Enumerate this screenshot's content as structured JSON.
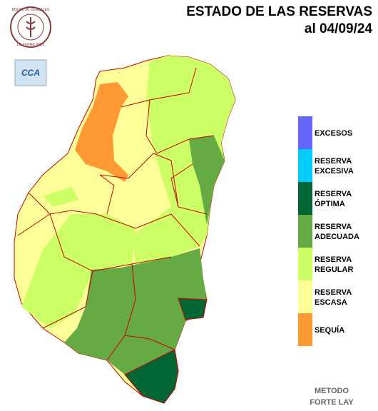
{
  "header": {
    "title": "ESTADO DE LAS RESERVAS",
    "date": "al 04/09/24"
  },
  "logos": {
    "bolsa_top": "BOLSA DE CEREALES",
    "bolsa_bottom": "DE ENTRE RIOS",
    "cca": "CCA"
  },
  "legend": [
    {
      "lines": [
        "EXCESOS"
      ],
      "color": "#6666ff"
    },
    {
      "lines": [
        "RESERVA",
        "EXCESIVA"
      ],
      "color": "#00ccff"
    },
    {
      "lines": [
        "RESERVA",
        "ÓPTIMA"
      ],
      "color": "#006633"
    },
    {
      "lines": [
        "RESERVA",
        "ADECUADA"
      ],
      "color": "#66aa44"
    },
    {
      "lines": [
        "RESERVA",
        "REGULAR"
      ],
      "color": "#ccff66"
    },
    {
      "lines": [
        "RESERVA",
        "ESCASA"
      ],
      "color": "#ffff99"
    },
    {
      "lines": [
        "SEQUÍA"
      ],
      "color": "#ff9933"
    }
  ],
  "footer": [
    "METODO",
    "FORTE LAY"
  ]
}
